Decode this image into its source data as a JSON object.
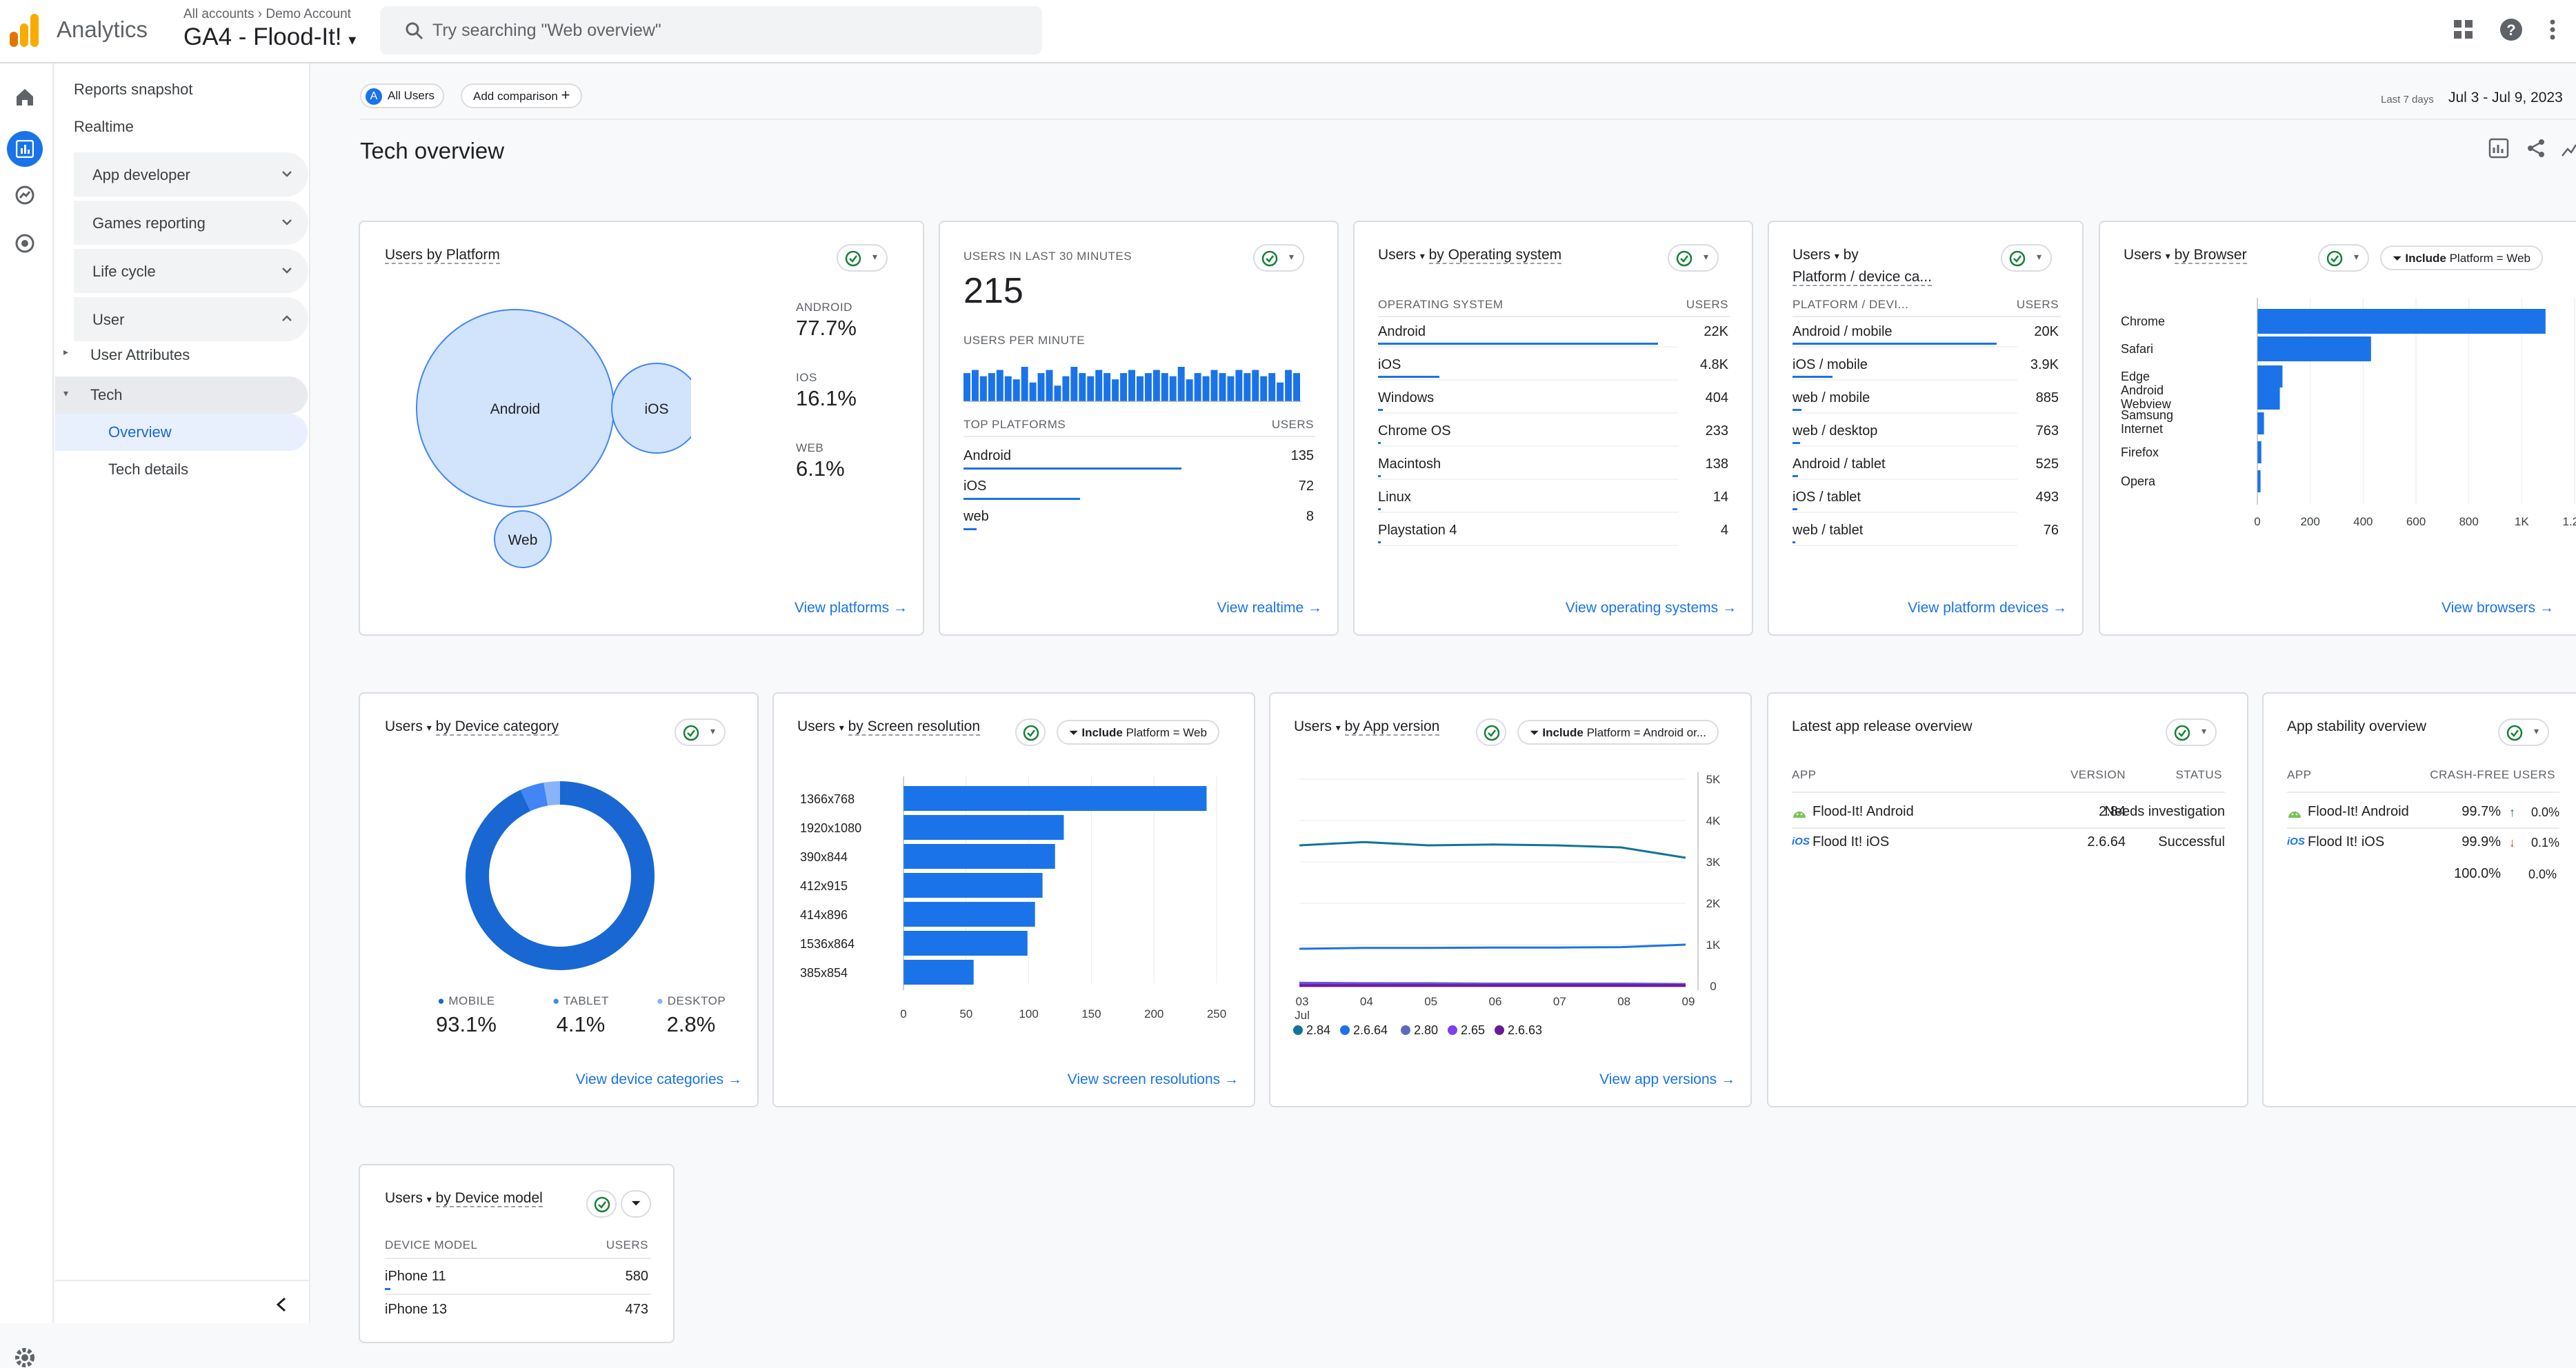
{
  "app": {
    "name": "Analytics",
    "breadcrumb_root": "All accounts",
    "breadcrumb_account": "Demo Account",
    "property": "GA4 - Flood-It!",
    "search_placeholder": "Try searching \"Web overview\""
  },
  "nav": {
    "reports_snapshot": "Reports snapshot",
    "realtime": "Realtime",
    "app_developer": "App developer",
    "games_reporting": "Games reporting",
    "life_cycle": "Life cycle",
    "user": "User",
    "user_attributes": "User Attributes",
    "tech": "Tech",
    "overview": "Overview",
    "tech_details": "Tech details"
  },
  "header": {
    "segment_letter": "A",
    "segment": "All Users",
    "add_comparison": "Add comparison",
    "date_label": "Last 7 days",
    "date_range": "Jul 3 - Jul 9, 2023",
    "title": "Tech overview"
  },
  "platform": {
    "title_a": "Users",
    "title_b": "by Platform",
    "bubbles": [
      {
        "label": "Android",
        "share": 77.7
      },
      {
        "label": "iOS",
        "share": 16.1
      },
      {
        "label": "Web",
        "share": 6.1
      }
    ],
    "stats": [
      {
        "label": "ANDROID",
        "value": "77.7%"
      },
      {
        "label": "IOS",
        "value": "16.1%"
      },
      {
        "label": "WEB",
        "value": "6.1%"
      }
    ],
    "link": "View platforms"
  },
  "realtime": {
    "title": "USERS IN LAST 30 MINUTES",
    "value": "215",
    "per_minute": "USERS PER MINUTE",
    "per_minute_values": [
      9,
      10,
      8,
      9,
      10,
      8,
      7,
      11,
      6,
      9,
      10,
      5,
      8,
      11,
      9,
      8,
      10,
      9,
      7,
      9,
      10,
      8,
      9,
      10,
      9,
      8,
      11,
      7,
      9,
      8,
      10,
      9,
      8,
      10,
      9,
      10,
      8,
      9,
      6,
      10,
      9
    ],
    "col1": "TOP PLATFORMS",
    "col2": "USERS",
    "rows": [
      {
        "name": "Android",
        "value": "135"
      },
      {
        "name": "iOS",
        "value": "72"
      },
      {
        "name": "web",
        "value": "8"
      }
    ],
    "link": "View realtime"
  },
  "os": {
    "title_a": "Users",
    "title_b": "by Operating system",
    "col1": "OPERATING SYSTEM",
    "col2": "USERS",
    "rows": [
      {
        "name": "Android",
        "value": "22K"
      },
      {
        "name": "iOS",
        "value": "4.8K"
      },
      {
        "name": "Windows",
        "value": "404"
      },
      {
        "name": "Chrome OS",
        "value": "233"
      },
      {
        "name": "Macintosh",
        "value": "138"
      },
      {
        "name": "Linux",
        "value": "14"
      },
      {
        "name": "Playstation 4",
        "value": "4"
      }
    ],
    "link": "View operating systems"
  },
  "platdev": {
    "title_a": "Users",
    "title_b": "by",
    "title_c": "Platform / device ca...",
    "col1": "PLATFORM / DEVI...",
    "col2": "USERS",
    "rows": [
      {
        "name": "Android / mobile",
        "value": "20K"
      },
      {
        "name": "iOS / mobile",
        "value": "3.9K"
      },
      {
        "name": "web / mobile",
        "value": "885"
      },
      {
        "name": "web / desktop",
        "value": "763"
      },
      {
        "name": "Android / tablet",
        "value": "525"
      },
      {
        "name": "iOS / tablet",
        "value": "493"
      },
      {
        "name": "web / tablet",
        "value": "76"
      }
    ],
    "link": "View platform devices"
  },
  "browser": {
    "title_a": "Users",
    "title_b": "by Browser",
    "filter_a": "Include",
    "filter_b": "Platform = Web",
    "link": "View browsers"
  },
  "device": {
    "title_a": "Users",
    "title_b": "by Device category",
    "stats": [
      {
        "label": "MOBILE",
        "value": "93.1%",
        "color": "#1967d2"
      },
      {
        "label": "TABLET",
        "value": "4.1%",
        "color": "#4285f4"
      },
      {
        "label": "DESKTOP",
        "value": "2.8%",
        "color": "#8ab4f8"
      }
    ],
    "link": "View device categories"
  },
  "screen": {
    "title_a": "Users",
    "title_b": "by Screen resolution",
    "filter_a": "Include",
    "filter_b": "Platform = Web",
    "link": "View screen resolutions"
  },
  "appver": {
    "title_a": "Users",
    "title_b": "by App version",
    "filter_a": "Include",
    "filter_b": "Platform = Android or...",
    "x_month": "Jul",
    "legend": [
      {
        "name": "2.84",
        "color": "#12739a"
      },
      {
        "name": "2.6.64",
        "color": "#1a73e8"
      },
      {
        "name": "2.80",
        "color": "#5c6bc0"
      },
      {
        "name": "2.65",
        "color": "#7e3ff2"
      },
      {
        "name": "2.6.63",
        "color": "#6a1b9a"
      }
    ],
    "link": "View app versions"
  },
  "release": {
    "title": "Latest app release overview",
    "col1": "APP",
    "col2": "VERSION",
    "col3": "STATUS",
    "rows": [
      {
        "app": "Flood-It! Android",
        "version": "2.84",
        "status": "Needs investigation",
        "icon": "android-icon"
      },
      {
        "app": "Flood It! iOS",
        "version": "2.6.64",
        "status": "Successful",
        "icon": "ios-icon"
      }
    ]
  },
  "stability": {
    "title": "App stability overview",
    "col1": "APP",
    "col2": "CRASH-FREE USERS",
    "rows": [
      {
        "app": "Flood-It! Android",
        "value": "99.7%",
        "delta": "0.0%",
        "dir": "up"
      },
      {
        "app": "Flood It! iOS",
        "value": "99.9%",
        "delta": "0.1%",
        "dir": "down"
      }
    ],
    "total": "100.0%",
    "total_delta": "0.0%"
  },
  "model": {
    "title_a": "Users",
    "title_b": "by Device model",
    "col1": "DEVICE MODEL",
    "col2": "USERS",
    "rows": [
      {
        "name": "iPhone 11",
        "value": "580"
      },
      {
        "name": "iPhone 13",
        "value": "473"
      }
    ]
  },
  "chart_data": [
    {
      "type": "bar",
      "title": "Users by Browser",
      "orientation": "horizontal",
      "categories": [
        "Chrome",
        "Safari",
        "Edge",
        "Android Webview",
        "Samsung Internet",
        "Firefox",
        "Opera"
      ],
      "values": [
        1090,
        430,
        95,
        85,
        25,
        15,
        12
      ],
      "xlim": [
        0,
        1200
      ],
      "xticks": [
        "0",
        "200",
        "400",
        "600",
        "800",
        "1K",
        "1.2K"
      ]
    },
    {
      "type": "pie",
      "title": "Users by Device category",
      "categories": [
        "MOBILE",
        "TABLET",
        "DESKTOP"
      ],
      "values": [
        93.1,
        4.1,
        2.8
      ]
    },
    {
      "type": "bar",
      "title": "Users by Screen resolution",
      "orientation": "horizontal",
      "categories": [
        "1366x768",
        "1920x1080",
        "390x844",
        "412x915",
        "414x896",
        "1536x864",
        "385x854"
      ],
      "values": [
        242,
        128,
        121,
        111,
        105,
        99,
        56
      ],
      "xlim": [
        0,
        250
      ],
      "xticks": [
        "0",
        "50",
        "100",
        "150",
        "200",
        "250"
      ]
    },
    {
      "type": "line",
      "title": "Users by App version",
      "x": [
        "03",
        "04",
        "05",
        "06",
        "07",
        "08",
        "09"
      ],
      "ylim": [
        0,
        5000
      ],
      "yticks": [
        "0",
        "1K",
        "2K",
        "3K",
        "4K",
        "5K"
      ],
      "series": [
        {
          "name": "2.84",
          "values": [
            3400,
            3480,
            3400,
            3420,
            3400,
            3350,
            3100
          ]
        },
        {
          "name": "2.6.64",
          "values": [
            900,
            920,
            920,
            930,
            930,
            940,
            1000
          ]
        },
        {
          "name": "2.80",
          "values": [
            70,
            60,
            60,
            50,
            50,
            50,
            40
          ]
        },
        {
          "name": "2.65",
          "values": [
            40,
            40,
            30,
            30,
            30,
            30,
            30
          ]
        },
        {
          "name": "2.6.63",
          "values": [
            10,
            10,
            10,
            10,
            10,
            10,
            10
          ]
        }
      ]
    }
  ]
}
